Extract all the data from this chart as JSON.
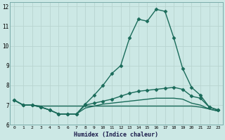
{
  "xlabel": "Humidex (Indice chaleur)",
  "ylabel": "",
  "background_color": "#cce8e5",
  "grid_color": "#b8d4d0",
  "line_color": "#1a6b5a",
  "xlim": [
    -0.5,
    23.5
  ],
  "ylim": [
    6,
    12.2
  ],
  "yticks": [
    6,
    7,
    8,
    9,
    10,
    11,
    12
  ],
  "xticks": [
    0,
    1,
    2,
    3,
    4,
    5,
    6,
    7,
    8,
    9,
    10,
    11,
    12,
    13,
    14,
    15,
    16,
    17,
    18,
    19,
    20,
    21,
    22,
    23
  ],
  "series": [
    {
      "x": [
        0,
        1,
        2,
        3,
        4,
        5,
        6,
        7,
        8,
        9,
        10,
        11,
        12,
        13,
        14,
        15,
        16,
        17,
        18,
        19,
        20,
        21,
        22,
        23
      ],
      "y": [
        7.25,
        7.0,
        7.0,
        6.9,
        6.75,
        6.55,
        6.55,
        6.55,
        7.05,
        7.5,
        8.0,
        8.6,
        9.0,
        10.4,
        11.35,
        11.25,
        11.85,
        11.75,
        10.4,
        8.85,
        7.9,
        7.5,
        6.9,
        6.75
      ],
      "marker": "D",
      "markersize": 2.5,
      "linewidth": 1.0
    },
    {
      "x": [
        0,
        1,
        2,
        3,
        4,
        5,
        6,
        7,
        8,
        9,
        10,
        11,
        12,
        13,
        14,
        15,
        16,
        17,
        18,
        19,
        20,
        21,
        22,
        23
      ],
      "y": [
        7.25,
        7.0,
        7.0,
        6.9,
        6.75,
        6.55,
        6.55,
        6.55,
        7.0,
        7.1,
        7.2,
        7.3,
        7.45,
        7.6,
        7.7,
        7.75,
        7.8,
        7.85,
        7.9,
        7.8,
        7.45,
        7.35,
        6.9,
        6.75
      ],
      "marker": "D",
      "markersize": 2.5,
      "linewidth": 1.0
    },
    {
      "x": [
        0,
        1,
        2,
        3,
        4,
        5,
        6,
        7,
        8,
        9,
        10,
        11,
        12,
        13,
        14,
        15,
        16,
        17,
        18,
        19,
        20,
        21,
        22,
        23
      ],
      "y": [
        7.25,
        7.0,
        7.0,
        6.95,
        6.95,
        6.95,
        6.95,
        6.95,
        6.95,
        6.95,
        6.95,
        6.95,
        6.95,
        6.95,
        6.95,
        6.95,
        6.95,
        6.95,
        6.95,
        6.95,
        6.95,
        6.9,
        6.8,
        6.7
      ],
      "marker": null,
      "markersize": 0,
      "linewidth": 1.0
    },
    {
      "x": [
        0,
        1,
        2,
        3,
        4,
        5,
        6,
        7,
        8,
        9,
        10,
        11,
        12,
        13,
        14,
        15,
        16,
        17,
        18,
        19,
        20,
        21,
        22,
        23
      ],
      "y": [
        7.25,
        7.0,
        7.0,
        6.9,
        6.75,
        6.55,
        6.55,
        6.55,
        6.85,
        6.95,
        7.05,
        7.1,
        7.15,
        7.2,
        7.25,
        7.3,
        7.35,
        7.35,
        7.35,
        7.3,
        7.1,
        7.0,
        6.8,
        6.7
      ],
      "marker": null,
      "markersize": 0,
      "linewidth": 1.0
    }
  ]
}
